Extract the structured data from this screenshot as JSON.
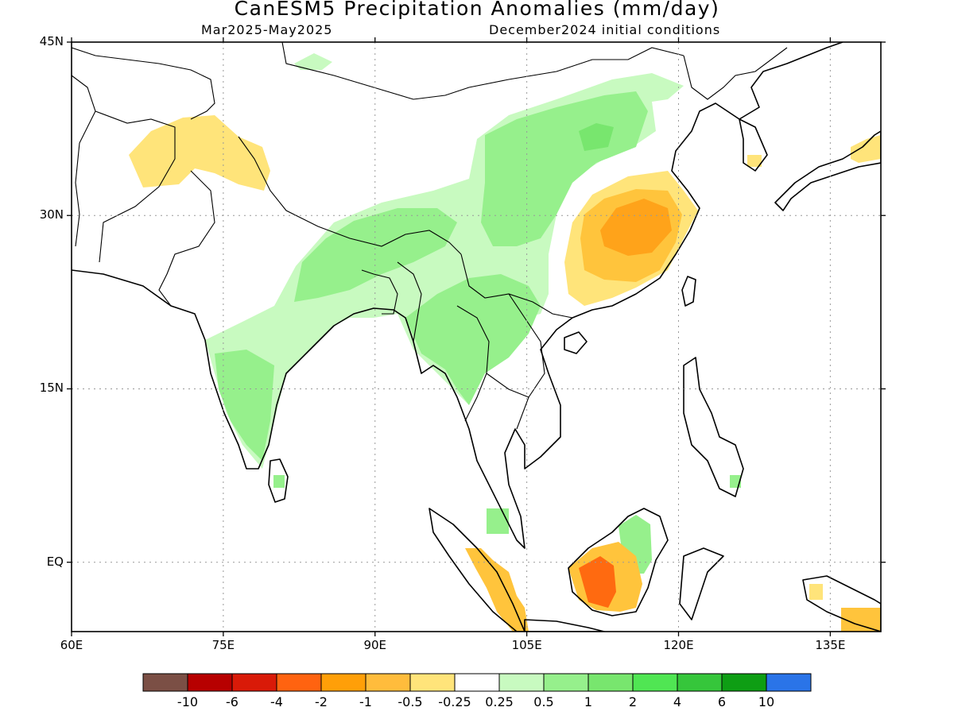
{
  "title": "CanESM5 Precipitation Anomalies (mm/day)",
  "subtitle_left": "Mar2025-May2025",
  "subtitle_right": "December2024 initial conditions",
  "map": {
    "lon_range": [
      60,
      140
    ],
    "lat_range": [
      -6,
      45
    ],
    "x_ticks": [
      "60E",
      "75E",
      "90E",
      "105E",
      "120E",
      "135E"
    ],
    "x_tick_values": [
      60,
      75,
      90,
      105,
      120,
      135
    ],
    "y_ticks": [
      "45N",
      "30N",
      "15N",
      "EQ"
    ],
    "y_tick_values": [
      45,
      30,
      15,
      0
    ],
    "grid": "dotted",
    "colors": {
      "land_outline": "#000000",
      "wet_light": "#c8fac0",
      "wet_1": "#96f08c",
      "wet_2": "#78e66e",
      "dry_light": "#ffe47a",
      "dry_1": "#ffc43c",
      "dry_2": "#ffa31a",
      "dry_strong": "#ff6a10"
    }
  },
  "colorbar": {
    "colors": [
      "#7b4f45",
      "#b70000",
      "#d91a08",
      "#ff6310",
      "#ff9f08",
      "#ffbc3c",
      "#ffe47a",
      "#ffffff",
      "#c8fac0",
      "#96f08c",
      "#78e66e",
      "#50e653",
      "#36c63b",
      "#0e9e14",
      "#2a74e8"
    ],
    "labels": [
      "-10",
      "-6",
      "-4",
      "-2",
      "-1",
      "-0.5",
      "-0.25",
      "0.25",
      "0.5",
      "1",
      "2",
      "4",
      "6",
      "10"
    ]
  }
}
